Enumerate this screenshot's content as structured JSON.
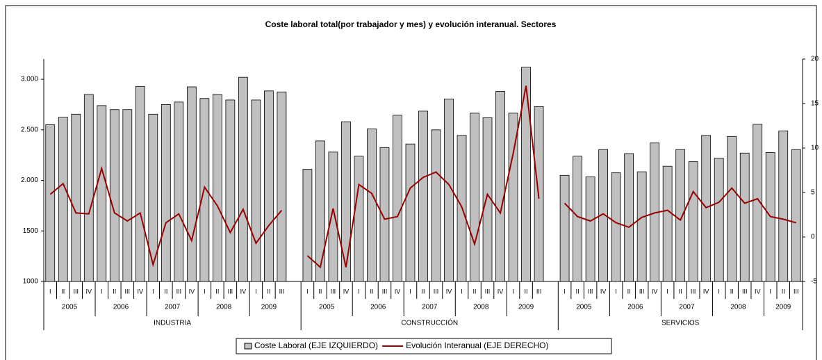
{
  "chart_data": {
    "type": "bar_line",
    "title": "Coste laboral total(por trabajador y mes) y evolución interanual. Sectores",
    "categories": [
      "I",
      "II",
      "III",
      "IV",
      "I",
      "II",
      "III",
      "IV",
      "I",
      "II",
      "III",
      "IV",
      "I",
      "II",
      "III",
      "IV",
      "I",
      "II",
      "III",
      null,
      "I",
      "II",
      "III",
      "IV",
      "I",
      "II",
      "III",
      "IV",
      "I",
      "II",
      "III",
      "IV",
      "I",
      "II",
      "III",
      "IV",
      "I",
      "II",
      "III",
      null,
      "I",
      "II",
      "III",
      "IV",
      "I",
      "II",
      "III",
      "IV",
      "I",
      "II",
      "III",
      "IV",
      "I",
      "II",
      "III",
      "IV",
      "I",
      "II",
      "III"
    ],
    "years": [
      "2005",
      "2006",
      "2007",
      "2008",
      "2009",
      "2005",
      "2006",
      "2007",
      "2008",
      "2009",
      "2005",
      "2006",
      "2007",
      "2008",
      "2009"
    ],
    "sectors": [
      "INDUSTRIA",
      "CONSTRUCCIÓN",
      "SERVICIOS"
    ],
    "series": [
      {
        "name": "Coste Laboral (EJE IZQUIERDO)",
        "type": "bar",
        "color": "#c0c0c0",
        "axis": "y",
        "values": [
          2550,
          2625,
          2655,
          2850,
          2740,
          2700,
          2700,
          2930,
          2655,
          2750,
          2775,
          2925,
          2810,
          2850,
          2795,
          3020,
          2795,
          2885,
          2875,
          null,
          2110,
          2390,
          2280,
          2580,
          2240,
          2510,
          2325,
          2645,
          2360,
          2685,
          2500,
          2805,
          2445,
          2665,
          2620,
          2880,
          2665,
          3120,
          2730,
          null,
          2050,
          2240,
          2035,
          2305,
          2075,
          2265,
          2085,
          2370,
          2140,
          2305,
          2185,
          2445,
          2220,
          2435,
          2270,
          2555,
          2275,
          2490,
          2305
        ]
      },
      {
        "name": "Evolución Interanual (EJE DERECHO)",
        "type": "line",
        "color": "#990000",
        "axis": "y2",
        "values": [
          4.8,
          6.0,
          2.7,
          2.6,
          7.7,
          2.7,
          1.8,
          2.7,
          -3.1,
          1.6,
          2.6,
          -0.4,
          5.6,
          3.5,
          0.5,
          3.1,
          -0.7,
          1.3,
          3.0,
          null,
          -2.1,
          -3.4,
          3.2,
          -3.4,
          5.9,
          4.9,
          2.0,
          2.3,
          5.5,
          6.7,
          7.3,
          5.9,
          3.4,
          -0.8,
          4.8,
          2.7,
          9.4,
          17.0,
          4.3,
          null,
          3.8,
          2.3,
          1.8,
          2.6,
          1.6,
          1.1,
          2.2,
          2.7,
          3.0,
          1.9,
          5.1,
          3.3,
          3.9,
          5.5,
          3.8,
          4.3,
          2.3,
          2.0,
          1.6
        ]
      }
    ],
    "ylim": [
      1000,
      3200
    ],
    "yticks": [
      1000,
      1500,
      {
        "value": 2000,
        "label": "2.000"
      },
      {
        "value": 2500,
        "label": "2.500"
      },
      {
        "value": 3000,
        "label": "3.000"
      }
    ],
    "y2lim": [
      -5,
      20
    ],
    "y2ticks": [
      -5,
      0,
      5,
      10,
      15,
      20
    ],
    "legend": "bottom"
  }
}
